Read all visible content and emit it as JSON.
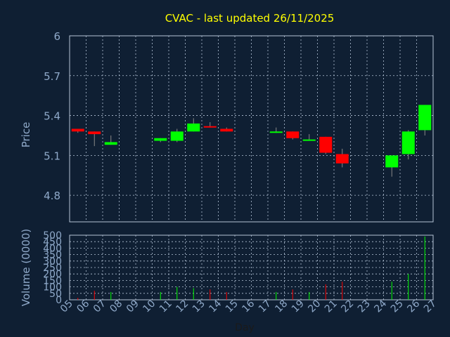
{
  "chart_data": {
    "type": "candlestick",
    "title": "CVAC - last updated 26/11/2025",
    "xlabel": "Day",
    "ylabel": "Price",
    "volume_label": "Volume (0000)",
    "x_ticks": [
      "05",
      "06",
      "07",
      "08",
      "09",
      "10",
      "11",
      "12",
      "13",
      "14",
      "15",
      "16",
      "17",
      "18",
      "19",
      "20",
      "21",
      "22",
      "23",
      "24",
      "25",
      "26",
      "27"
    ],
    "price_ticks": [
      "6",
      "5.7",
      "5.4",
      "5.1",
      "4.8"
    ],
    "price_tick_values": [
      6.0,
      5.7,
      5.4,
      5.1,
      4.8
    ],
    "ylim": [
      4.6,
      6.0
    ],
    "volume_ticks": [
      "500",
      "450",
      "400",
      "350",
      "300",
      "250",
      "200",
      "150",
      "100",
      "50",
      "0"
    ],
    "volume_tick_values": [
      500,
      450,
      400,
      350,
      300,
      250,
      200,
      150,
      100,
      50,
      0
    ],
    "volume_ylim": [
      0,
      500
    ],
    "grid": true,
    "candles": [
      {
        "day": "05",
        "open": 5.3,
        "close": 5.28,
        "high": 5.3,
        "low": 5.27,
        "volume": 15
      },
      {
        "day": "06",
        "open": 5.28,
        "close": 5.26,
        "high": 5.28,
        "low": 5.17,
        "volume": 70
      },
      {
        "day": "07",
        "open": 5.18,
        "close": 5.2,
        "high": 5.25,
        "low": 5.18,
        "volume": 60
      },
      {
        "day": "10",
        "open": 5.21,
        "close": 5.23,
        "high": 5.23,
        "low": 5.2,
        "volume": 60
      },
      {
        "day": "11",
        "open": 5.21,
        "close": 5.28,
        "high": 5.3,
        "low": 5.2,
        "volume": 100
      },
      {
        "day": "12",
        "open": 5.28,
        "close": 5.34,
        "high": 5.38,
        "low": 5.28,
        "volume": 90
      },
      {
        "day": "13",
        "open": 5.32,
        "close": 5.31,
        "high": 5.35,
        "low": 5.31,
        "volume": 80
      },
      {
        "day": "14",
        "open": 5.3,
        "close": 5.28,
        "high": 5.31,
        "low": 5.28,
        "volume": 60
      },
      {
        "day": "17",
        "open": 5.27,
        "close": 5.28,
        "high": 5.31,
        "low": 5.27,
        "volume": 60
      },
      {
        "day": "18",
        "open": 5.28,
        "close": 5.23,
        "high": 5.28,
        "low": 5.22,
        "volume": 80
      },
      {
        "day": "19",
        "open": 5.21,
        "close": 5.22,
        "high": 5.26,
        "low": 5.21,
        "volume": 60
      },
      {
        "day": "20",
        "open": 5.24,
        "close": 5.12,
        "high": 5.24,
        "low": 5.11,
        "volume": 120
      },
      {
        "day": "21",
        "open": 5.11,
        "close": 5.04,
        "high": 5.15,
        "low": 5.01,
        "volume": 140
      },
      {
        "day": "24",
        "open": 5.01,
        "close": 5.1,
        "high": 5.1,
        "low": 4.94,
        "volume": 140
      },
      {
        "day": "25",
        "open": 5.11,
        "close": 5.28,
        "high": 5.29,
        "low": 5.07,
        "volume": 200
      },
      {
        "day": "26",
        "open": 5.29,
        "close": 5.48,
        "high": 5.48,
        "low": 5.25,
        "volume": 490
      }
    ]
  },
  "colors": {
    "background": "#0f1f33",
    "title": "#ffff00",
    "axis_text": "#8fa9c9",
    "grid": "#b4c3d6",
    "up": "#00ff00",
    "down": "#ff0000",
    "wick": "#888888"
  }
}
